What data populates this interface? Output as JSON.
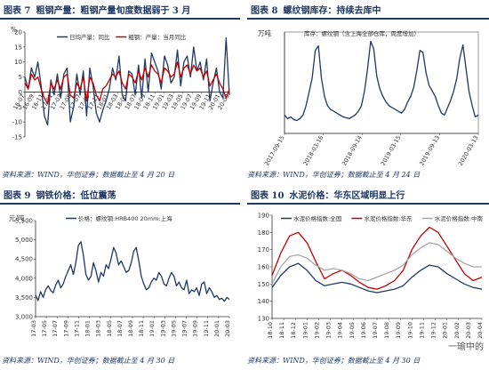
{
  "panels": [
    {
      "fig": "图表 7",
      "title": "粗钢产量：粗钢产量旬度数据弱于 3 月",
      "source": "资料来源：WIND，华创证券；数据截止至 4 月 20 日"
    },
    {
      "fig": "图表 8",
      "title": "螺纹钢库存：持续去库中",
      "source": "资料来源：WIND，华创证券；数据截止至 4 月 24 日"
    },
    {
      "fig": "图表 9",
      "title": "钢铁价格：低位震荡",
      "source": "资料来源：WIND，华创证券；数据截止至 4 月 30 日"
    },
    {
      "fig": "图表 10",
      "title": "水泥价格：华东区域明显上行",
      "source": "资料来源：WIND，华创证券；数据截止至 4 月 30 日"
    }
  ],
  "watermark": "一瑜中的",
  "colors": {
    "navy": "#1f3864",
    "red": "#c00000",
    "gray": "#a6a6a6"
  },
  "chart_data": [
    {
      "type": "line",
      "ylabel": "%",
      "ylim": [
        -15,
        20
      ],
      "yticks": [
        -15,
        -10,
        -5,
        0,
        5,
        10,
        15,
        20
      ],
      "xticks": [
        "16-07",
        "16-09",
        "16-11",
        "17-01",
        "17-03",
        "17-05",
        "17-07",
        "17-09",
        "17-11",
        "18-01",
        "18-03",
        "18-05",
        "18-07",
        "18-09",
        "18-11",
        "19-01",
        "19-03",
        "19-05",
        "19-07",
        "19-09",
        "19-11",
        "20-01",
        "20-03"
      ],
      "series": [
        {
          "name": "日均产量：同比",
          "color": "#1f3864",
          "values": [
            5,
            1,
            8,
            5,
            10,
            2,
            -8,
            -11,
            4,
            -1,
            6,
            -2,
            6,
            8,
            -10,
            -5,
            6,
            -1,
            7,
            -8,
            8,
            2,
            -7,
            -10,
            -6,
            -3,
            1,
            8,
            4,
            12,
            -1,
            -3,
            7,
            6,
            -1,
            9,
            -2,
            11,
            0,
            13,
            10,
            7,
            1,
            12,
            9,
            3,
            5,
            14,
            2,
            10,
            12,
            5,
            15,
            7,
            10,
            4,
            11,
            -3,
            3,
            8,
            0,
            -2,
            18,
            -1
          ]
        },
        {
          "name": "粗钢：产量：当月同比",
          "color": "#c00000",
          "values": [
            3,
            1,
            6,
            4,
            5,
            1,
            -2,
            -4,
            3,
            1,
            4,
            1,
            5,
            6,
            -1,
            -2,
            3,
            1,
            5,
            -3,
            5,
            3,
            -1,
            -3,
            1,
            2,
            4,
            6,
            5,
            7,
            3,
            1,
            6,
            5,
            3,
            7,
            4,
            8,
            5,
            9,
            7,
            6,
            3,
            8,
            7,
            5,
            6,
            10,
            5,
            8,
            9,
            6,
            9,
            7,
            8,
            5,
            7,
            2,
            4,
            6,
            3,
            1,
            -2,
            1
          ]
        }
      ]
    },
    {
      "type": "line",
      "ylabel": "万吨",
      "xticks": [
        "2017-09-15",
        "2018-03-16",
        "2018-09-14",
        "2019-03-15",
        "2019-09-13",
        "2020-03-13"
      ],
      "series": [
        {
          "name": "库存：螺纹钢（含上海全部仓库，周度增加）",
          "color": "#1f3864",
          "values": [
            20,
            16,
            18,
            15,
            14,
            16,
            20,
            30,
            45,
            60,
            90,
            95,
            60,
            40,
            30,
            26,
            24,
            22,
            20,
            18,
            17,
            16,
            18,
            20,
            24,
            30,
            46,
            70,
            100,
            92,
            62,
            48,
            40,
            34,
            30,
            28,
            26,
            24,
            22,
            26,
            34,
            40,
            50,
            68,
            90,
            88,
            66,
            52,
            46,
            40,
            30,
            22,
            20,
            28,
            36,
            46,
            60,
            82,
            96,
            70,
            45,
            30,
            18,
            20
          ]
        }
      ]
    },
    {
      "type": "line",
      "ylabel": "元/吨",
      "ylim": [
        3000,
        5500
      ],
      "yticks": [
        3000,
        3500,
        4000,
        4500,
        5000,
        5500
      ],
      "xticks": [
        "17-03",
        "17-05",
        "17-07",
        "17-09",
        "17-11",
        "18-01",
        "18-03",
        "18-05",
        "18-07",
        "18-09",
        "18-11",
        "19-01",
        "19-03",
        "19-05",
        "19-07",
        "19-09",
        "19-11",
        "20-01",
        "20-03"
      ],
      "series": [
        {
          "name": "价格：螺纹钢:HRB400 20mm:上海",
          "color": "#1f3864",
          "values": [
            3560,
            3420,
            3650,
            3500,
            3700,
            3800,
            3680,
            3620,
            3820,
            3950,
            3750,
            3850,
            4050,
            4200,
            4350,
            4100,
            4400,
            4850,
            4950,
            4600,
            4100,
            3950,
            4050,
            4400,
            4200,
            3900,
            4150,
            4050,
            4350,
            4250,
            4500,
            4800,
            4650,
            4350,
            4450,
            4300,
            4150,
            4200,
            4400,
            4700,
            4800,
            4450,
            4050,
            3850,
            3700,
            3750,
            3900,
            4000,
            3950,
            4150,
            4050,
            3850,
            3800,
            4000,
            4150,
            4050,
            3800,
            3900,
            3750,
            3700,
            3950,
            3600,
            3700,
            3650,
            3750,
            3550,
            3850,
            3900,
            3600,
            3750,
            3650,
            3500,
            3550,
            3450,
            3480,
            3400,
            3500,
            3450
          ]
        }
      ]
    },
    {
      "type": "line",
      "ylim": [
        130,
        190
      ],
      "yticks": [
        130,
        140,
        150,
        160,
        170,
        180,
        190
      ],
      "xticks": [
        "18-10",
        "18-11",
        "18-12",
        "19-01",
        "19-02",
        "19-03",
        "19-04",
        "19-05",
        "19-06",
        "19-07",
        "19-08",
        "19-09",
        "19-10",
        "19-11",
        "19-12",
        "20-01",
        "20-02",
        "20-03",
        "20-04"
      ],
      "series": [
        {
          "name": "水泥价格指数:全国",
          "color": "#1f3864",
          "values": [
            148,
            155,
            160,
            162,
            158,
            152,
            149,
            150,
            151,
            150,
            148,
            146,
            145,
            146,
            147,
            149,
            154,
            158,
            161,
            160,
            156,
            153,
            150,
            148,
            147
          ]
        },
        {
          "name": "水泥价格指数:华东",
          "color": "#c00000",
          "values": [
            155,
            168,
            178,
            180,
            174,
            163,
            153,
            156,
            158,
            155,
            151,
            148,
            147,
            149,
            152,
            158,
            170,
            178,
            183,
            180,
            172,
            164,
            156,
            152,
            154
          ]
        },
        {
          "name": "水泥价格指数:中南",
          "color": "#a6a6a6",
          "values": [
            150,
            160,
            166,
            167,
            165,
            161,
            158,
            159,
            158,
            156,
            153,
            152,
            154,
            156,
            158,
            161,
            167,
            171,
            174,
            173,
            169,
            165,
            162,
            160,
            160
          ]
        }
      ]
    }
  ]
}
